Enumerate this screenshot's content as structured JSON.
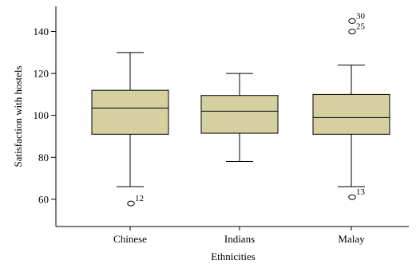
{
  "chart_data": {
    "type": "boxplot",
    "xlabel": "Ethnicities",
    "ylabel": "Satisfaction with hostels",
    "ylim": [
      47,
      152
    ],
    "yticks": [
      60,
      80,
      100,
      120,
      140
    ],
    "grid": false,
    "box_color": "#d6d0a0",
    "categories": [
      "Chinese",
      "Indians",
      "Malay"
    ],
    "boxes": [
      {
        "category": "Chinese",
        "min": 66,
        "q1": 91,
        "median": 103.5,
        "q3": 112,
        "max": 130,
        "outliers": [
          {
            "value": 58,
            "label": "12"
          }
        ]
      },
      {
        "category": "Indians",
        "min": 78,
        "q1": 91.5,
        "median": 102,
        "q3": 109.5,
        "max": 120,
        "outliers": []
      },
      {
        "category": "Malay",
        "min": 66,
        "q1": 91,
        "median": 99,
        "q3": 110,
        "max": 124,
        "outliers": [
          {
            "value": 61,
            "label": "13"
          },
          {
            "value": 140,
            "label": "25"
          },
          {
            "value": 145,
            "label": "30"
          }
        ]
      }
    ]
  }
}
